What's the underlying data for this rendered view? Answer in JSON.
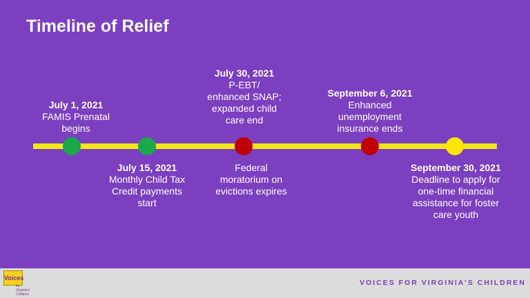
{
  "title": "Timeline of Relief",
  "events": [
    {
      "date": "July 1, 2021",
      "desc": "FAMIS Prenatal begins",
      "color": "#1aa84a"
    },
    {
      "date": "July 15, 2021",
      "desc": "Monthly Child Tax Credit payments start",
      "color": "#1aa84a"
    },
    {
      "date": "July 30, 2021",
      "desc": "P-EBT/ enhanced SNAP; expanded child care end",
      "desc_below": "Federal moratorium on evictions expires",
      "color": "#c00000"
    },
    {
      "date": "September 6, 2021",
      "desc": "Enhanced unemployment insurance ends",
      "color": "#c00000"
    },
    {
      "date": "September 30, 2021",
      "desc": "Deadline to apply for one-time financial assistance for foster care youth",
      "color": "#ffe600"
    }
  ],
  "footer": {
    "org": "VOICES FOR VIRGINIA’S CHILDREN",
    "logo_text": "Voices",
    "logo_sub": "for Virginia's Children"
  },
  "colors": {
    "background": "#7b3fbf",
    "timeline": "#f5e61a",
    "footer_bg": "#dcdcdc"
  }
}
